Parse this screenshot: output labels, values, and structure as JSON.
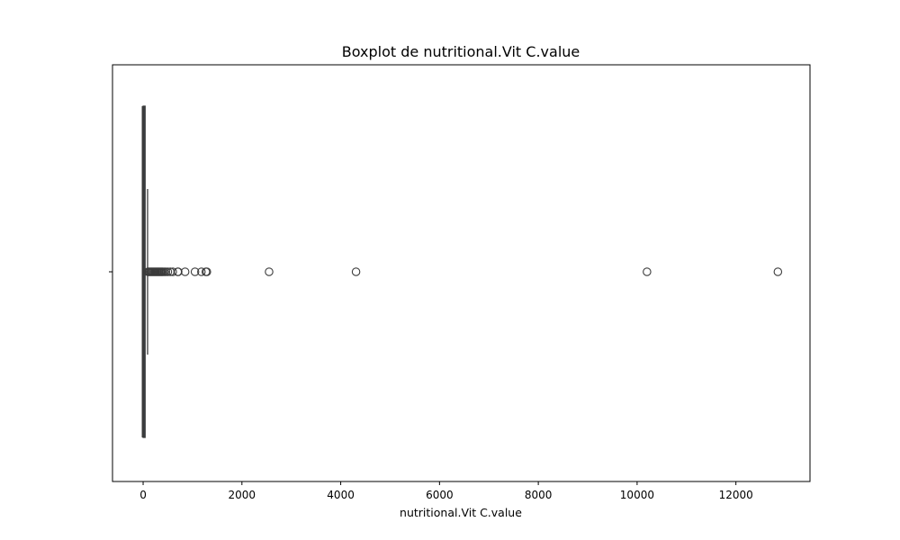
{
  "chart_data": {
    "type": "boxplot",
    "orientation": "horizontal",
    "title": "Boxplot de nutritional.Vit C.value",
    "xlabel": "nutritional.Vit C.value",
    "ylabel": "",
    "xlim": [
      -620,
      13500
    ],
    "xticks": [
      0,
      2000,
      4000,
      6000,
      8000,
      10000,
      12000
    ],
    "xtick_labels": [
      "0",
      "2000",
      "4000",
      "6000",
      "8000",
      "10000",
      "12000"
    ],
    "grid": false,
    "box": {
      "whisker_low": 0,
      "q1": 0,
      "median": 0,
      "q3": 40,
      "whisker_high": 90
    },
    "outliers": [
      100,
      120,
      140,
      160,
      180,
      200,
      220,
      240,
      260,
      280,
      300,
      320,
      340,
      360,
      380,
      400,
      430,
      460,
      500,
      550,
      600,
      700,
      710,
      850,
      1050,
      1180,
      1270,
      1290,
      2550,
      4310,
      10200,
      12850
    ],
    "colors": {
      "box_face": "#3a75af",
      "line": "#3b3b3b",
      "axes": "#000000"
    }
  }
}
